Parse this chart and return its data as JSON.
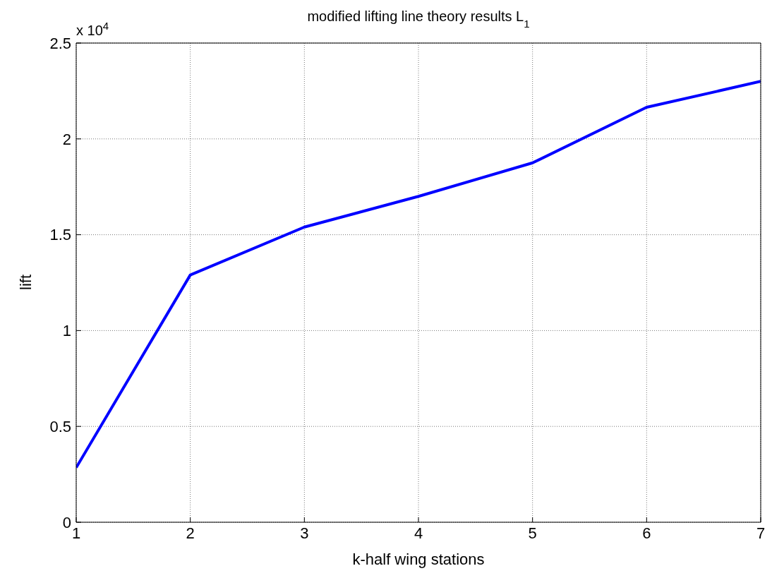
{
  "chart_data": {
    "type": "line",
    "title": "modified lifting line theory results L$_{1}$",
    "xlabel": "k-half wing stations",
    "ylabel": "lift",
    "annotations": [
      "x 10$^{4}$"
    ],
    "x": [
      1,
      2,
      3,
      4,
      5,
      6,
      7
    ],
    "series": [
      {
        "color": "#0000ff",
        "values": [
          0.285,
          1.29,
          1.54,
          1.7,
          1.875,
          2.165,
          2.3
        ]
      }
    ],
    "xlim": [
      1,
      7
    ],
    "xticks": [
      1,
      2,
      3,
      4,
      5,
      6,
      7
    ],
    "ylim": [
      0,
      2.5
    ],
    "yticks": [
      0,
      0.5,
      1,
      1.5,
      2,
      2.5
    ],
    "grid": true,
    "marker": "none",
    "line_style": "solid",
    "legend": false
  }
}
